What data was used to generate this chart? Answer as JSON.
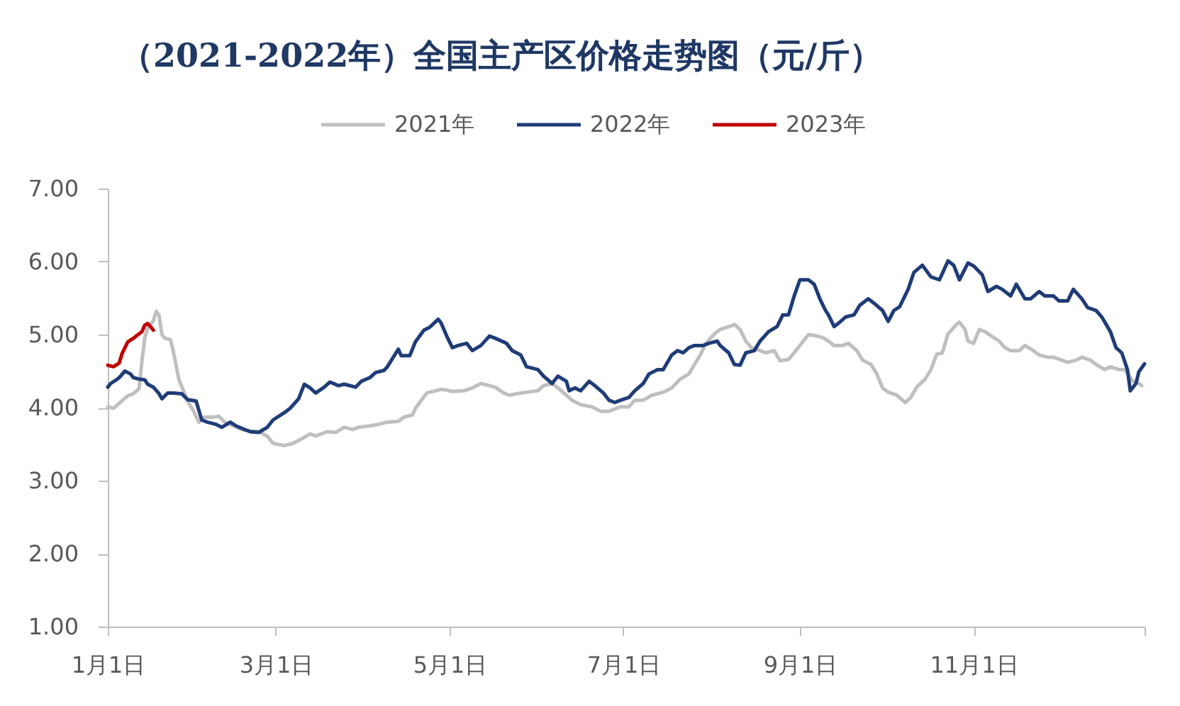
{
  "chart_data": {
    "type": "line",
    "title": "（2021-2022年）全国主产区价格走势图（元/斤）",
    "xlim": [
      "--01-01",
      "--12-31"
    ],
    "xticks": [
      {
        "value": "--01-01",
        "label": "1月1日"
      },
      {
        "value": "--03-01",
        "label": "3月1日"
      },
      {
        "value": "--05-01",
        "label": "5月1日"
      },
      {
        "value": "--07-01",
        "label": "7月1日"
      },
      {
        "value": "--09-01",
        "label": "9月1日"
      },
      {
        "value": "--11-01",
        "label": "11月1日"
      },
      {
        "value": "--12-31",
        "label": null
      }
    ],
    "ylim": [
      1,
      7
    ],
    "yticks": [
      {
        "value": 1,
        "label": "1.00"
      },
      {
        "value": 2,
        "label": "2.00"
      },
      {
        "value": 3,
        "label": "3.00"
      },
      {
        "value": 4,
        "label": "4.00"
      },
      {
        "value": 5,
        "label": "5.00"
      },
      {
        "value": 6,
        "label": "6.00"
      },
      {
        "value": 7,
        "label": "7.00"
      }
    ],
    "legend": "top",
    "series": [
      {
        "name": "2021年",
        "color": "#bfbfbf",
        "x": [
          "--01-01",
          "--01-03",
          "--01-05",
          "--01-08",
          "--01-10",
          "--01-12",
          "--01-13",
          "--01-14",
          "--01-15",
          "--01-17",
          "--01-18",
          "--01-19",
          "--01-20",
          "--01-21",
          "--01-23",
          "--01-24",
          "--01-26",
          "--01-28",
          "--01-29",
          "--01-31",
          "--02-02",
          "--02-04",
          "--02-07",
          "--02-09",
          "--02-11",
          "--02-13",
          "--02-17",
          "--02-20",
          "--02-23",
          "--02-26",
          "--02-28",
          "--03-04",
          "--03-07",
          "--03-10",
          "--03-13",
          "--03-15",
          "--03-19",
          "--03-22",
          "--03-25",
          "--03-28",
          "--03-30",
          "--04-03",
          "--04-06",
          "--04-09",
          "--04-13",
          "--04-15",
          "--04-18",
          "--04-19",
          "--04-23",
          "--04-25",
          "--04-28",
          "--04-30",
          "--05-02",
          "--05-06",
          "--05-09",
          "--05-12",
          "--05-15",
          "--05-17",
          "--05-20",
          "--05-22",
          "--05-26",
          "--05-28",
          "--06-01",
          "--06-03",
          "--06-06",
          "--06-08",
          "--06-11",
          "--06-13",
          "--06-16",
          "--06-20",
          "--06-23",
          "--06-26",
          "--06-30",
          "--07-03",
          "--07-05",
          "--07-08",
          "--07-11",
          "--07-15",
          "--07-18",
          "--07-21",
          "--07-24",
          "--07-26",
          "--07-28",
          "--07-30",
          "--08-02",
          "--08-04",
          "--08-08",
          "--08-09",
          "--08-11",
          "--08-13",
          "--08-15",
          "--08-18",
          "--08-20",
          "--08-23",
          "--08-25",
          "--08-28",
          "--08-30",
          "--09-02",
          "--09-04",
          "--09-07",
          "--09-09",
          "--09-11",
          "--09-13",
          "--09-16",
          "--09-18",
          "--09-21",
          "--09-23",
          "--09-26",
          "--09-28",
          "--09-30",
          "--10-02",
          "--10-05",
          "--10-08",
          "--10-10",
          "--10-12",
          "--10-15",
          "--10-17",
          "--10-19",
          "--10-21",
          "--10-23",
          "--10-26",
          "--10-27",
          "--10-29",
          "--10-30",
          "--11-01",
          "--11-03",
          "--11-05",
          "--11-08",
          "--11-10",
          "--11-12",
          "--11-14",
          "--11-17",
          "--11-19",
          "--11-22",
          "--11-24",
          "--11-27",
          "--11-29",
          "--12-02",
          "--12-04",
          "--12-07",
          "--12-09",
          "--12-12",
          "--12-14",
          "--12-17",
          "--12-19",
          "--12-22",
          "--12-24",
          "--12-27",
          "--12-29",
          "--12-30"
        ],
        "values": [
          4.01,
          3.99,
          4.06,
          4.16,
          4.19,
          4.26,
          4.64,
          4.96,
          5.09,
          5.19,
          5.32,
          5.26,
          5.0,
          4.95,
          4.93,
          4.77,
          4.38,
          4.19,
          4.09,
          3.96,
          3.8,
          3.87,
          3.87,
          3.88,
          3.8,
          3.77,
          3.7,
          3.68,
          3.67,
          3.61,
          3.51,
          3.48,
          3.51,
          3.57,
          3.64,
          3.61,
          3.67,
          3.66,
          3.73,
          3.7,
          3.73,
          3.75,
          3.77,
          3.8,
          3.81,
          3.87,
          3.9,
          3.99,
          4.2,
          4.22,
          4.25,
          4.24,
          4.22,
          4.23,
          4.27,
          4.33,
          4.3,
          4.28,
          4.2,
          4.17,
          4.2,
          4.21,
          4.23,
          4.3,
          4.33,
          4.27,
          4.17,
          4.1,
          4.04,
          4.01,
          3.95,
          3.95,
          4.01,
          4.01,
          4.1,
          4.1,
          4.17,
          4.21,
          4.27,
          4.39,
          4.46,
          4.59,
          4.72,
          4.88,
          5.01,
          5.07,
          5.12,
          5.14,
          5.07,
          4.91,
          4.82,
          4.78,
          4.75,
          4.78,
          4.64,
          4.66,
          4.75,
          4.9,
          5.0,
          4.98,
          4.96,
          4.91,
          4.85,
          4.85,
          4.88,
          4.78,
          4.65,
          4.59,
          4.46,
          4.27,
          4.21,
          4.17,
          4.07,
          4.14,
          4.28,
          4.39,
          4.52,
          4.73,
          4.75,
          5.01,
          5.14,
          5.17,
          5.07,
          4.91,
          4.88,
          5.07,
          5.04,
          4.96,
          4.91,
          4.82,
          4.78,
          4.78,
          4.85,
          4.78,
          4.72,
          4.69,
          4.69,
          4.65,
          4.62,
          4.65,
          4.69,
          4.65,
          4.59,
          4.52,
          4.56,
          4.52,
          4.52,
          4.36,
          4.33,
          4.3
        ]
      },
      {
        "name": "2022年",
        "color": "#1f3c78",
        "x": [
          "--01-01",
          "--01-02",
          "--01-04",
          "--01-05",
          "--01-07",
          "--01-09",
          "--01-10",
          "--01-12",
          "--01-14",
          "--01-15",
          "--01-17",
          "--01-19",
          "--01-20",
          "--01-22",
          "--01-24",
          "--01-27",
          "--01-29",
          "--02-01",
          "--02-03",
          "--02-05",
          "--02-08",
          "--02-10",
          "--02-13",
          "--02-15",
          "--02-18",
          "--02-20",
          "--02-23",
          "--02-26",
          "--02-28",
          "--03-04",
          "--03-06",
          "--03-09",
          "--03-11",
          "--03-13",
          "--03-15",
          "--03-18",
          "--03-20",
          "--03-23",
          "--03-25",
          "--03-29",
          "--03-31",
          "--04-03",
          "--04-05",
          "--04-08",
          "--04-09",
          "--04-13",
          "--04-14",
          "--04-17",
          "--04-19",
          "--04-22",
          "--04-24",
          "--04-27",
          "--04-28",
          "--04-30",
          "--05-02",
          "--05-04",
          "--05-07",
          "--05-09",
          "--05-12",
          "--05-15",
          "--05-17",
          "--05-21",
          "--05-23",
          "--05-26",
          "--05-28",
          "--06-01",
          "--06-03",
          "--06-06",
          "--06-08",
          "--06-11",
          "--06-12",
          "--06-14",
          "--06-16",
          "--06-19",
          "--06-21",
          "--06-24",
          "--06-26",
          "--06-28",
          "--06-30",
          "--07-03",
          "--07-05",
          "--07-08",
          "--07-10",
          "--07-13",
          "--07-15",
          "--07-18",
          "--07-20",
          "--07-22",
          "--07-24",
          "--07-26",
          "--07-29",
          "--07-31",
          "--08-03",
          "--08-04",
          "--08-07",
          "--08-09",
          "--08-11",
          "--08-13",
          "--08-16",
          "--08-18",
          "--08-21",
          "--08-24",
          "--08-26",
          "--08-28",
          "--08-30",
          "--09-01",
          "--09-04",
          "--09-06",
          "--09-08",
          "--09-10",
          "--09-11",
          "--09-13",
          "--09-15",
          "--09-17",
          "--09-20",
          "--09-22",
          "--09-25",
          "--09-27",
          "--09-30",
          "--10-02",
          "--10-04",
          "--10-06",
          "--10-09",
          "--10-11",
          "--10-14",
          "--10-17",
          "--10-20",
          "--10-23",
          "--10-25",
          "--10-27",
          "--10-30",
          "--11-01",
          "--11-04",
          "--11-06",
          "--11-09",
          "--11-11",
          "--11-14",
          "--11-16",
          "--11-19",
          "--11-21",
          "--11-24",
          "--11-26",
          "--11-29",
          "--12-01",
          "--12-04",
          "--12-06",
          "--12-09",
          "--12-11",
          "--12-14",
          "--12-16",
          "--12-19",
          "--12-21",
          "--12-23",
          "--12-25",
          "--12-26",
          "--12-28",
          "--12-29",
          "--12-31"
        ],
        "values": [
          4.28,
          4.33,
          4.38,
          4.41,
          4.5,
          4.46,
          4.41,
          4.39,
          4.38,
          4.32,
          4.28,
          4.19,
          4.12,
          4.2,
          4.2,
          4.19,
          4.11,
          4.09,
          3.83,
          3.8,
          3.77,
          3.73,
          3.8,
          3.75,
          3.7,
          3.67,
          3.66,
          3.73,
          3.83,
          3.93,
          3.99,
          4.12,
          4.32,
          4.27,
          4.2,
          4.28,
          4.35,
          4.3,
          4.32,
          4.28,
          4.36,
          4.41,
          4.48,
          4.51,
          4.55,
          4.8,
          4.71,
          4.71,
          4.9,
          5.06,
          5.1,
          5.21,
          5.16,
          4.98,
          4.82,
          4.85,
          4.88,
          4.78,
          4.85,
          4.98,
          4.95,
          4.88,
          4.78,
          4.72,
          4.56,
          4.52,
          4.43,
          4.33,
          4.43,
          4.36,
          4.23,
          4.27,
          4.23,
          4.36,
          4.3,
          4.2,
          4.1,
          4.07,
          4.1,
          4.14,
          4.23,
          4.33,
          4.46,
          4.52,
          4.52,
          4.72,
          4.78,
          4.75,
          4.82,
          4.85,
          4.85,
          4.88,
          4.91,
          4.85,
          4.75,
          4.59,
          4.58,
          4.75,
          4.78,
          4.91,
          5.04,
          5.11,
          5.27,
          5.27,
          5.53,
          5.75,
          5.75,
          5.69,
          5.49,
          5.33,
          5.27,
          5.11,
          5.17,
          5.24,
          5.27,
          5.4,
          5.49,
          5.43,
          5.33,
          5.18,
          5.33,
          5.38,
          5.62,
          5.85,
          5.95,
          5.79,
          5.75,
          6.01,
          5.95,
          5.75,
          5.98,
          5.94,
          5.82,
          5.59,
          5.66,
          5.62,
          5.53,
          5.69,
          5.49,
          5.49,
          5.59,
          5.53,
          5.53,
          5.46,
          5.46,
          5.62,
          5.49,
          5.37,
          5.33,
          5.24,
          5.04,
          4.82,
          4.75,
          4.52,
          4.23,
          4.33,
          4.49,
          4.6
        ]
      },
      {
        "name": "2023年",
        "color": "#c00000",
        "x": [
          "--01-01",
          "--01-03",
          "--01-05",
          "--01-06",
          "--01-08",
          "--01-10",
          "--01-11",
          "--01-13",
          "--01-14",
          "--01-15",
          "--01-16",
          "--01-17"
        ],
        "values": [
          4.58,
          4.56,
          4.61,
          4.74,
          4.9,
          4.95,
          4.98,
          5.04,
          5.13,
          5.15,
          5.11,
          5.06
        ]
      }
    ]
  }
}
